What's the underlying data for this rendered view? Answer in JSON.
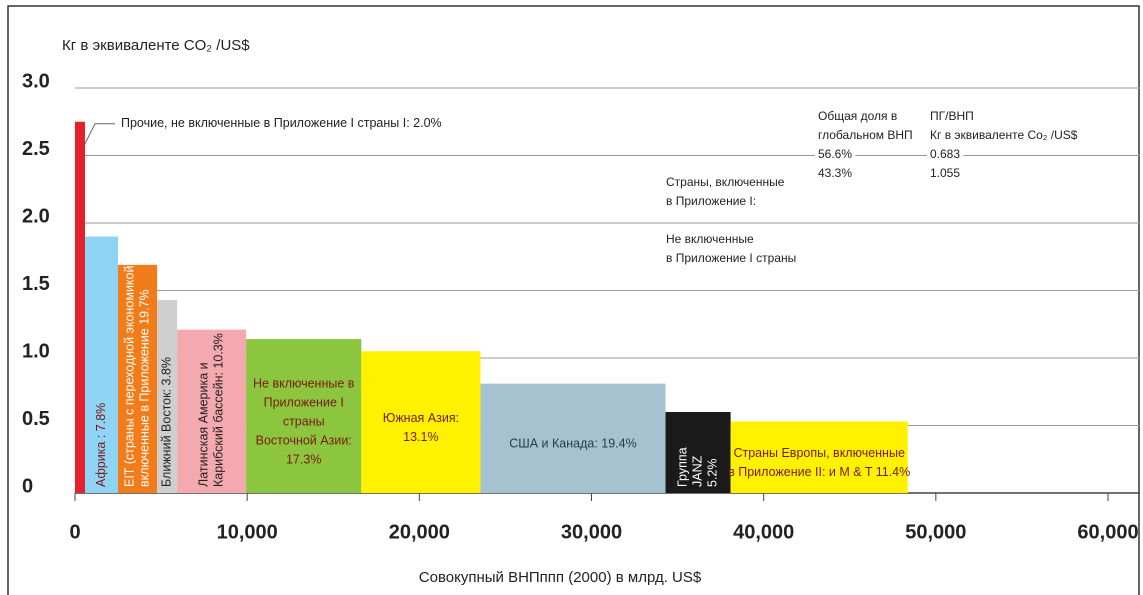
{
  "chart_data": {
    "type": "variable-width-bar",
    "y_axis_label": "Кг в эквиваленте CO₂ /US$",
    "x_axis_label": "Совокупный ВНПппп (2000) в млрд. US$",
    "bins": [
      0,
      580,
      2500,
      4770,
      5930,
      9940,
      16630,
      23550,
      34300,
      38080,
      48370
    ],
    "values": [
      2.75,
      1.9,
      1.69,
      1.43,
      1.21,
      1.14,
      1.05,
      0.81,
      0.6,
      0.53
    ],
    "colors": [
      "#e3212b",
      "#8fd4f5",
      "#f07c1a",
      "#cfcfcf",
      "#f4a9ae",
      "#8cc63f",
      "#fff200",
      "#a6c2d1",
      "#1a1a1a",
      "#fff200"
    ],
    "label_colors": [
      "#222",
      "#7a1a12",
      "#ffffff",
      "#222",
      "#222",
      "#7a1a12",
      "#7a1a12",
      "#1d3d4a",
      "#ffffff",
      "#7a1a12"
    ],
    "categories": [
      [
        "Прочие, не включенные в Приложение I страны I: 2.0%"
      ],
      [
        "Африка : 7.8%"
      ],
      [
        "EIT (страны с переходной экономикой),",
        "включенные в Приложение 19.7%"
      ],
      [
        "Ближний Восток: 3.8%"
      ],
      [
        "Латинская Америка и",
        "Карибский бассейн: 10.3%"
      ],
      [
        "Не включенные в",
        "Приложение I",
        "страны",
        "Восточной Азии:",
        "17.3%"
      ],
      [
        "Южная Азия:",
        "13.1%"
      ],
      [
        "США и Канада: 19.4%"
      ],
      [
        "Группа",
        "JANZ",
        "5.2%"
      ],
      [
        "Страны Европы, включенные",
        "в Приложение II: и M & T 11.4%"
      ]
    ],
    "annotations": [
      [
        "Общая доля в",
        "глобальном ВНП",
        "56.6%",
        "43.3%"
      ],
      [
        "ПГ/ВНП",
        "Кг в эквиваленте Co₂ /US$",
        "0.683",
        "1.055"
      ],
      [
        "Страны, включенные",
        "в Приложение I:"
      ],
      [
        "Не включенные",
        "в Приложение I страны"
      ]
    ],
    "xlim": [
      0,
      60000
    ],
    "xticks": [
      0,
      {
        "value": 10000,
        "label": "10,000"
      },
      {
        "value": 20000,
        "label": "20,000"
      },
      {
        "value": 30000,
        "label": "30,000"
      },
      {
        "value": 40000,
        "label": "40,000"
      },
      {
        "value": 50000,
        "label": "50,000"
      },
      {
        "value": 60000,
        "label": "60,000"
      }
    ],
    "ylim": [
      0,
      3
    ],
    "yticks": [
      0,
      0.5,
      {
        "value": 1,
        "label": "1.0"
      },
      1.5,
      {
        "value": 2,
        "label": "2.0"
      },
      2.5,
      {
        "value": 3,
        "label": "3.0"
      }
    ],
    "grid": true
  }
}
